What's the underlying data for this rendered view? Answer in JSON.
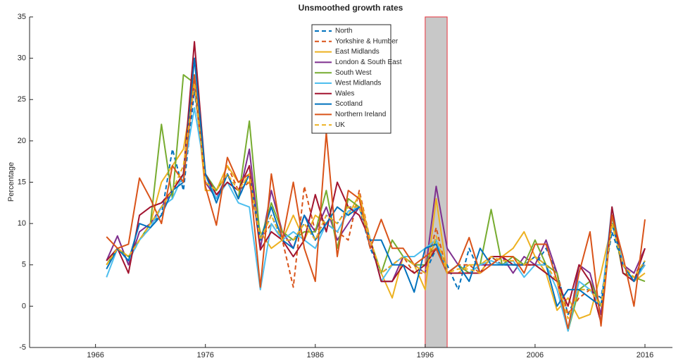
{
  "chart_data": {
    "type": "line",
    "title": "Unsmoothed growth rates",
    "y_label": "Percentage",
    "x": [
      1967,
      1968,
      1969,
      1970,
      1971,
      1972,
      1973,
      1974,
      1975,
      1976,
      1977,
      1978,
      1979,
      1980,
      1981,
      1982,
      1983,
      1984,
      1985,
      1986,
      1987,
      1988,
      1989,
      1990,
      1991,
      1992,
      1993,
      1994,
      1995,
      1996,
      1997,
      1998,
      1999,
      2000,
      2001,
      2002,
      2003,
      2004,
      2005,
      2006,
      2007,
      2008,
      2009,
      2010,
      2011,
      2012,
      2013,
      2014,
      2015,
      2016
    ],
    "xlim": [
      1960,
      2018.5
    ],
    "xticks": [
      1966,
      1976,
      1986,
      1996,
      2006,
      2016
    ],
    "ylim": [
      -5,
      35
    ],
    "yticks": [
      -5,
      0,
      5,
      10,
      15,
      20,
      25,
      30,
      35
    ],
    "shaded_region": [
      1996,
      1998
    ],
    "shaded_color": "#c8c8c8",
    "shaded_border": "#e8323c",
    "legend": "north",
    "series": [
      {
        "name": "North",
        "color": "#0072BD",
        "dashed": true,
        "values": [
          5,
          7,
          5.5,
          8,
          10,
          11,
          19,
          14,
          26,
          16,
          14,
          16,
          13,
          16,
          8,
          11,
          8,
          8,
          10,
          8,
          11,
          10,
          12,
          12,
          7,
          4,
          5,
          6,
          5,
          4,
          7,
          5,
          2,
          7,
          4,
          6,
          5,
          5,
          5,
          5,
          7,
          4,
          -1,
          2,
          2,
          1,
          9,
          5,
          3,
          5
        ]
      },
      {
        "name": "Yorkshire & Humber",
        "color": "#D95319",
        "dashed": true,
        "values": [
          5,
          7,
          6,
          8,
          9.5,
          12,
          14,
          16,
          27,
          15,
          14,
          17,
          14,
          15,
          8,
          10,
          8,
          2.3,
          14.5,
          9,
          10,
          9,
          8,
          14,
          8,
          4,
          5,
          6,
          4,
          4,
          9.5,
          4,
          5,
          5,
          4,
          6,
          5,
          5,
          5,
          5,
          5,
          4,
          -1,
          1,
          2,
          0,
          11,
          5,
          4,
          5
        ]
      },
      {
        "name": "East Midlands",
        "color": "#EDB120",
        "dashed": false,
        "values": [
          5,
          7,
          6,
          8,
          10,
          15,
          17,
          19,
          27,
          14,
          14,
          17,
          15,
          15,
          9,
          7,
          8,
          11,
          8,
          11,
          10,
          12,
          11,
          13.5,
          8,
          4,
          1,
          6,
          5,
          2,
          13,
          4,
          4,
          5,
          5,
          6,
          6,
          7,
          9,
          6,
          4,
          -0.5,
          1,
          -1.5,
          -1,
          4,
          10,
          5,
          3,
          4
        ]
      },
      {
        "name": "London & South East",
        "color": "#7E2F8E",
        "dashed": false,
        "values": [
          5.5,
          8.5,
          5,
          9,
          10,
          12,
          14,
          16,
          27,
          15,
          13,
          16,
          13,
          19,
          7,
          14,
          9,
          7,
          11,
          9,
          12,
          8,
          10,
          12,
          8,
          3,
          3,
          6,
          5,
          4,
          14.5,
          7,
          5,
          4,
          5,
          5,
          6,
          4,
          6,
          5,
          8,
          4,
          -3,
          5,
          4,
          -1,
          11,
          5,
          4,
          7
        ]
      },
      {
        "name": "South West",
        "color": "#77AC30",
        "dashed": false,
        "values": [
          5,
          7,
          6,
          8,
          10,
          22,
          13,
          28,
          27,
          16,
          14,
          16,
          13,
          22.4,
          8,
          12.5,
          9,
          8,
          9,
          9,
          14,
          7,
          13,
          12,
          8,
          4,
          8,
          6,
          5,
          5,
          8,
          4,
          5,
          4,
          5,
          11.7,
          5,
          6,
          5,
          8,
          5,
          4,
          -3,
          2,
          3,
          0,
          11,
          4,
          3.5,
          3
        ]
      },
      {
        "name": "West Midlands",
        "color": "#4DBEEE",
        "dashed": false,
        "values": [
          3.5,
          7,
          5.5,
          8,
          9.5,
          12,
          13,
          16,
          24,
          16,
          13,
          15,
          12.5,
          12,
          2,
          10,
          8,
          9,
          8,
          7,
          10,
          9,
          11.5,
          12,
          8,
          3,
          5,
          6,
          6,
          7,
          8,
          4,
          4,
          4,
          5,
          5.5,
          5,
          5.5,
          3.5,
          5,
          5,
          2,
          -3,
          3,
          2,
          0,
          12,
          5,
          3,
          5
        ]
      },
      {
        "name": "Wales",
        "color": "#A2142F",
        "dashed": false,
        "values": [
          5.5,
          7,
          4,
          11,
          12,
          12.5,
          14,
          16,
          32,
          16,
          13.5,
          15,
          14,
          17,
          6.8,
          9,
          8,
          6,
          8,
          13.5,
          9,
          15,
          12,
          11,
          8,
          3,
          3,
          5,
          4,
          5,
          7,
          4,
          4,
          4,
          4,
          6,
          6,
          5,
          5,
          5,
          4,
          3,
          0,
          5,
          3,
          -2,
          12,
          4,
          3,
          7
        ]
      },
      {
        "name": "Scotland",
        "color": "#0072BD",
        "dashed": false,
        "values": [
          4.5,
          7,
          5.5,
          10,
          9.5,
          11,
          14,
          15,
          30,
          16,
          12.5,
          16,
          13,
          16,
          8,
          12,
          8,
          7,
          11,
          8,
          10,
          12,
          11,
          12,
          8,
          8,
          5,
          5,
          1.7,
          7,
          7.5,
          4,
          5,
          3,
          7,
          5,
          5,
          5,
          5,
          6,
          5,
          0,
          2,
          2,
          1,
          0,
          10,
          5,
          3,
          5.5
        ]
      },
      {
        "name": "Northern Ireland",
        "color": "#D95319",
        "dashed": false,
        "values": [
          8.4,
          7,
          7.5,
          15.5,
          13,
          10,
          17,
          15,
          28,
          14.5,
          9.8,
          18,
          15,
          16,
          2.3,
          16,
          8,
          15,
          7,
          3,
          21,
          6,
          14,
          13,
          7,
          10.5,
          7,
          7,
          5,
          6,
          7,
          4,
          5,
          8.3,
          4,
          5,
          6,
          6,
          4,
          7.5,
          7.5,
          3,
          -2.7,
          4,
          9,
          -2.4,
          11,
          6,
          0,
          10.5
        ]
      },
      {
        "name": "UK",
        "color": "#EDB120",
        "dashed": true,
        "values": [
          5,
          7,
          6,
          8,
          10,
          12,
          14,
          17,
          27,
          15,
          14,
          16,
          14,
          16,
          8,
          11,
          8,
          8,
          10,
          8,
          11,
          10,
          12,
          12,
          8,
          4,
          5,
          6,
          5,
          4,
          8.5,
          4,
          4.5,
          4.5,
          4,
          6,
          5.5,
          5.5,
          5,
          6,
          5,
          3,
          -1.5,
          2,
          2,
          0,
          10,
          5,
          3.5,
          5.5
        ]
      }
    ]
  }
}
